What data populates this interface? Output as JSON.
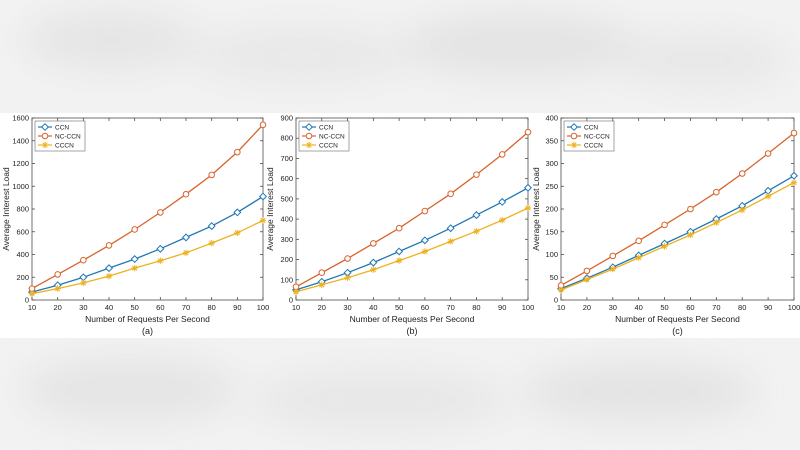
{
  "colors": {
    "CCN": "#1f77b4",
    "NC-CCN": "#d9622b",
    "CCCN": "#edb120"
  },
  "chart_data": [
    {
      "type": "line",
      "caption": "(a)",
      "xlabel": "Number of Requests Per Second",
      "ylabel": "Average Interest Load",
      "x": [
        10,
        20,
        30,
        40,
        50,
        60,
        70,
        80,
        90,
        100
      ],
      "xticks": [
        "10",
        "20",
        "30",
        "40",
        "50",
        "60",
        "70",
        "80",
        "90",
        "100"
      ],
      "ylim": [
        0,
        1600
      ],
      "yticks": [
        "0",
        "200",
        "400",
        "600",
        "800",
        "1000",
        "1200",
        "1400",
        "1600"
      ],
      "legend_position": "top-left",
      "series": [
        {
          "name": "CCN",
          "values": [
            70,
            130,
            200,
            280,
            360,
            450,
            550,
            650,
            770,
            910
          ]
        },
        {
          "name": "NC-CCN",
          "values": [
            100,
            225,
            350,
            480,
            620,
            770,
            930,
            1100,
            1300,
            1540
          ]
        },
        {
          "name": "CCCN",
          "values": [
            55,
            100,
            150,
            210,
            280,
            345,
            415,
            500,
            590,
            700
          ]
        }
      ]
    },
    {
      "type": "line",
      "caption": "(b)",
      "xlabel": "Number of Requests Per Second",
      "ylabel": "Average Interest Load",
      "x": [
        10,
        20,
        30,
        40,
        50,
        60,
        70,
        80,
        90,
        100
      ],
      "xticks": [
        "10",
        "20",
        "30",
        "40",
        "50",
        "60",
        "70",
        "80",
        "90",
        "100"
      ],
      "ylim": [
        0,
        900
      ],
      "yticks": [
        "0",
        "100",
        "200",
        "300",
        "400",
        "500",
        "600",
        "700",
        "800",
        "900"
      ],
      "legend_position": "top-left",
      "series": [
        {
          "name": "CCN",
          "values": [
            50,
            90,
            135,
            185,
            240,
            295,
            355,
            420,
            485,
            555
          ]
        },
        {
          "name": "NC-CCN",
          "values": [
            65,
            135,
            205,
            280,
            355,
            440,
            525,
            620,
            720,
            830
          ]
        },
        {
          "name": "CCCN",
          "values": [
            40,
            75,
            110,
            150,
            195,
            240,
            290,
            340,
            395,
            455
          ]
        }
      ]
    },
    {
      "type": "line",
      "caption": "(c)",
      "xlabel": "Number of Requests Per Second",
      "ylabel": "Average Interest Load",
      "x": [
        10,
        20,
        30,
        40,
        50,
        60,
        70,
        80,
        90,
        100
      ],
      "xticks": [
        "10",
        "20",
        "30",
        "40",
        "50",
        "60",
        "70",
        "80",
        "90",
        "100"
      ],
      "ylim": [
        0,
        400
      ],
      "yticks": [
        "0",
        "50",
        "100",
        "150",
        "200",
        "250",
        "300",
        "350",
        "400"
      ],
      "legend_position": "top-left",
      "series": [
        {
          "name": "CCN",
          "values": [
            25,
            48,
            72,
            98,
            124,
            150,
            178,
            207,
            240,
            273
          ]
        },
        {
          "name": "NC-CCN",
          "values": [
            32,
            64,
            97,
            130,
            165,
            200,
            237,
            278,
            322,
            367
          ]
        },
        {
          "name": "CCCN",
          "values": [
            22,
            45,
            68,
            93,
            118,
            143,
            170,
            198,
            228,
            258
          ]
        }
      ]
    }
  ]
}
